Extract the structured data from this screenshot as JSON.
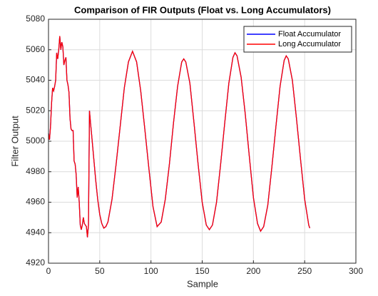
{
  "chart_data": {
    "type": "line",
    "title": "Comparison of FIR Outputs (Float vs. Long Accumulators)",
    "x_label": "Sample",
    "y_label": "Filter Output",
    "xlim": [
      0,
      300
    ],
    "ylim": [
      4920,
      5080
    ],
    "xticks": [
      0,
      50,
      100,
      150,
      200,
      250,
      300
    ],
    "yticks": [
      4920,
      4940,
      4960,
      4980,
      5000,
      5020,
      5040,
      5060,
      5080
    ],
    "grid": true,
    "legend": "top-right",
    "x": [
      0,
      1,
      2,
      3,
      4,
      5,
      6,
      7,
      8,
      9,
      10,
      11,
      12,
      13,
      14,
      15,
      16,
      17,
      18,
      19,
      20,
      21,
      22,
      23,
      24,
      25,
      26,
      27,
      28,
      29,
      30,
      31,
      32,
      33,
      34,
      35,
      36,
      37,
      38,
      39,
      40,
      41,
      42,
      44,
      46,
      48,
      50,
      52,
      54,
      56,
      58,
      62,
      66,
      70,
      74,
      78,
      82,
      86,
      90,
      94,
      98,
      102,
      106,
      110,
      114,
      118,
      122,
      126,
      130,
      132,
      134,
      138,
      142,
      146,
      150,
      154,
      157,
      160,
      164,
      168,
      172,
      176,
      180,
      182,
      184,
      188,
      192,
      196,
      200,
      204,
      207,
      210,
      214,
      218,
      222,
      226,
      230,
      232,
      234,
      238,
      242,
      246,
      250,
      254,
      255
    ],
    "series": [
      {
        "name": "Float Accumulator",
        "color": "#0000ff",
        "values": [
          5005,
          5001,
          5010,
          5025,
          5035,
          5033,
          5036,
          5040,
          5058,
          5054,
          5060,
          5069,
          5060,
          5065,
          5062,
          5050,
          5053,
          5055,
          5040,
          5037,
          5032,
          5015,
          5008,
          5007,
          5007,
          4987,
          4985,
          4978,
          4963,
          4970,
          4960,
          4945,
          4942,
          4945,
          4950,
          4946,
          4945,
          4944,
          4937,
          4945,
          5020,
          5012,
          5005,
          4990,
          4975,
          4962,
          4952,
          4946,
          4943,
          4944,
          4947,
          4962,
          4985,
          5010,
          5035,
          5052,
          5059,
          5052,
          5033,
          5008,
          4982,
          4957,
          4944,
          4947,
          4962,
          4985,
          5012,
          5036,
          5052,
          5054,
          5052,
          5038,
          5012,
          4985,
          4960,
          4945,
          4942,
          4945,
          4960,
          4985,
          5012,
          5038,
          5055,
          5058,
          5056,
          5042,
          5018,
          4990,
          4963,
          4946,
          4941,
          4944,
          4958,
          4983,
          5010,
          5036,
          5053,
          5056,
          5054,
          5040,
          5015,
          4988,
          4962,
          4945,
          4943
        ]
      },
      {
        "name": "Long Accumulator",
        "color": "#ff0000",
        "values": [
          5005,
          5001,
          5010,
          5025,
          5035,
          5033,
          5036,
          5040,
          5058,
          5054,
          5060,
          5069,
          5060,
          5065,
          5062,
          5050,
          5053,
          5055,
          5040,
          5037,
          5032,
          5015,
          5008,
          5007,
          5007,
          4987,
          4985,
          4978,
          4963,
          4970,
          4960,
          4945,
          4942,
          4945,
          4950,
          4946,
          4945,
          4944,
          4937,
          4945,
          5020,
          5012,
          5005,
          4990,
          4975,
          4962,
          4952,
          4946,
          4943,
          4944,
          4947,
          4962,
          4985,
          5010,
          5035,
          5052,
          5059,
          5052,
          5033,
          5008,
          4982,
          4957,
          4944,
          4947,
          4962,
          4985,
          5012,
          5036,
          5052,
          5054,
          5052,
          5038,
          5012,
          4985,
          4960,
          4945,
          4942,
          4945,
          4960,
          4985,
          5012,
          5038,
          5055,
          5058,
          5056,
          5042,
          5018,
          4990,
          4963,
          4946,
          4941,
          4944,
          4958,
          4983,
          5010,
          5036,
          5053,
          5056,
          5054,
          5040,
          5015,
          4988,
          4962,
          4945,
          4943
        ]
      }
    ]
  }
}
